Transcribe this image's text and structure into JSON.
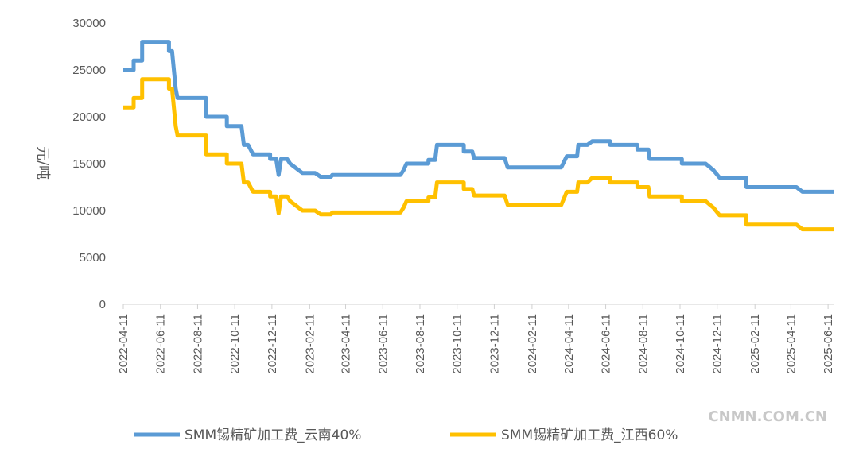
{
  "chart_data": {
    "type": "line",
    "title": "",
    "xlabel": "",
    "ylabel": "元/吨",
    "ylim": [
      0,
      30000
    ],
    "yticks": [
      0,
      5000,
      10000,
      15000,
      20000,
      25000,
      30000
    ],
    "xlim": [
      "2022-04-11",
      "2025-06-20"
    ],
    "xticks": [
      "2022-04-11",
      "2022-06-11",
      "2022-08-11",
      "2022-10-11",
      "2022-12-11",
      "2023-02-11",
      "2023-04-11",
      "2023-06-11",
      "2023-08-11",
      "2023-10-11",
      "2023-12-11",
      "2024-02-11",
      "2024-04-11",
      "2024-06-11",
      "2024-08-11",
      "2024-10-11",
      "2024-12-11",
      "2025-02-11",
      "2025-04-11",
      "2025-06-11"
    ],
    "grid": false,
    "legend_position": "bottom",
    "series": [
      {
        "name": "SMM锡精矿加工费_云南40%",
        "color": "#5B9BD5",
        "points": [
          [
            "2022-04-11",
            25000
          ],
          [
            "2022-04-28",
            25000
          ],
          [
            "2022-04-28",
            26000
          ],
          [
            "2022-05-12",
            26000
          ],
          [
            "2022-05-12",
            28000
          ],
          [
            "2022-06-25",
            28000
          ],
          [
            "2022-06-25",
            27000
          ],
          [
            "2022-06-30",
            27000
          ],
          [
            "2022-07-03",
            25000
          ],
          [
            "2022-07-06",
            23000
          ],
          [
            "2022-07-09",
            22000
          ],
          [
            "2022-08-25",
            22000
          ],
          [
            "2022-08-25",
            20000
          ],
          [
            "2022-09-28",
            20000
          ],
          [
            "2022-09-28",
            19000
          ],
          [
            "2022-10-22",
            19000
          ],
          [
            "2022-10-26",
            17000
          ],
          [
            "2022-11-02",
            17000
          ],
          [
            "2022-11-10",
            16000
          ],
          [
            "2022-12-08",
            16000
          ],
          [
            "2022-12-08",
            15500
          ],
          [
            "2022-12-18",
            15500
          ],
          [
            "2022-12-22",
            13800
          ],
          [
            "2022-12-26",
            15500
          ],
          [
            "2023-01-05",
            15500
          ],
          [
            "2023-01-10",
            15000
          ],
          [
            "2023-01-20",
            14500
          ],
          [
            "2023-01-30",
            14000
          ],
          [
            "2023-02-20",
            14000
          ],
          [
            "2023-03-01",
            13600
          ],
          [
            "2023-03-18",
            13600
          ],
          [
            "2023-03-20",
            13800
          ],
          [
            "2023-07-10",
            13800
          ],
          [
            "2023-07-15",
            14300
          ],
          [
            "2023-07-20",
            15000
          ],
          [
            "2023-08-25",
            15000
          ],
          [
            "2023-08-25",
            15400
          ],
          [
            "2023-09-05",
            15400
          ],
          [
            "2023-09-08",
            17000
          ],
          [
            "2023-10-22",
            17000
          ],
          [
            "2023-10-22",
            16300
          ],
          [
            "2023-11-05",
            16300
          ],
          [
            "2023-11-08",
            15600
          ],
          [
            "2023-12-10",
            15600
          ],
          [
            "2023-12-28",
            15600
          ],
          [
            "2024-01-02",
            14600
          ],
          [
            "2024-03-30",
            14600
          ],
          [
            "2024-04-08",
            15800
          ],
          [
            "2024-04-25",
            15800
          ],
          [
            "2024-04-27",
            17000
          ],
          [
            "2024-05-12",
            17000
          ],
          [
            "2024-05-20",
            17400
          ],
          [
            "2024-06-18",
            17400
          ],
          [
            "2024-06-18",
            17000
          ],
          [
            "2024-08-02",
            17000
          ],
          [
            "2024-08-02",
            16500
          ],
          [
            "2024-08-20",
            16500
          ],
          [
            "2024-08-22",
            15500
          ],
          [
            "2024-10-14",
            15500
          ],
          [
            "2024-10-14",
            15000
          ],
          [
            "2024-11-22",
            15000
          ],
          [
            "2024-12-05",
            14300
          ],
          [
            "2024-12-15",
            13500
          ],
          [
            "2025-01-28",
            13500
          ],
          [
            "2025-01-28",
            12500
          ],
          [
            "2025-04-20",
            12500
          ],
          [
            "2025-04-30",
            12000
          ],
          [
            "2025-06-20",
            12000
          ]
        ]
      },
      {
        "name": "SMM锡精矿加工费_江西60%",
        "color": "#FFC000",
        "points": [
          [
            "2022-04-11",
            21000
          ],
          [
            "2022-04-28",
            21000
          ],
          [
            "2022-04-28",
            22000
          ],
          [
            "2022-05-12",
            22000
          ],
          [
            "2022-05-12",
            24000
          ],
          [
            "2022-06-25",
            24000
          ],
          [
            "2022-06-25",
            23000
          ],
          [
            "2022-06-30",
            23000
          ],
          [
            "2022-07-03",
            21000
          ],
          [
            "2022-07-06",
            19000
          ],
          [
            "2022-07-09",
            18000
          ],
          [
            "2022-08-25",
            18000
          ],
          [
            "2022-08-25",
            16000
          ],
          [
            "2022-09-28",
            16000
          ],
          [
            "2022-09-28",
            15000
          ],
          [
            "2022-10-22",
            15000
          ],
          [
            "2022-10-26",
            13000
          ],
          [
            "2022-11-02",
            13000
          ],
          [
            "2022-11-10",
            12000
          ],
          [
            "2022-12-08",
            12000
          ],
          [
            "2022-12-08",
            11500
          ],
          [
            "2022-12-18",
            11500
          ],
          [
            "2022-12-22",
            9700
          ],
          [
            "2022-12-26",
            11500
          ],
          [
            "2023-01-05",
            11500
          ],
          [
            "2023-01-10",
            11000
          ],
          [
            "2023-01-20",
            10500
          ],
          [
            "2023-01-30",
            10000
          ],
          [
            "2023-02-20",
            10000
          ],
          [
            "2023-03-01",
            9600
          ],
          [
            "2023-03-18",
            9600
          ],
          [
            "2023-03-20",
            9800
          ],
          [
            "2023-07-10",
            9800
          ],
          [
            "2023-07-15",
            10300
          ],
          [
            "2023-07-20",
            11000
          ],
          [
            "2023-08-25",
            11000
          ],
          [
            "2023-08-25",
            11400
          ],
          [
            "2023-09-05",
            11400
          ],
          [
            "2023-09-08",
            13000
          ],
          [
            "2023-10-22",
            13000
          ],
          [
            "2023-10-22",
            12300
          ],
          [
            "2023-11-05",
            12300
          ],
          [
            "2023-11-08",
            11600
          ],
          [
            "2023-12-10",
            11600
          ],
          [
            "2023-12-28",
            11600
          ],
          [
            "2024-01-02",
            10600
          ],
          [
            "2024-03-30",
            10600
          ],
          [
            "2024-04-08",
            12000
          ],
          [
            "2024-04-25",
            12000
          ],
          [
            "2024-04-27",
            13000
          ],
          [
            "2024-05-12",
            13000
          ],
          [
            "2024-05-20",
            13500
          ],
          [
            "2024-06-18",
            13500
          ],
          [
            "2024-06-18",
            13000
          ],
          [
            "2024-08-02",
            13000
          ],
          [
            "2024-08-02",
            12500
          ],
          [
            "2024-08-20",
            12500
          ],
          [
            "2024-08-22",
            11500
          ],
          [
            "2024-10-14",
            11500
          ],
          [
            "2024-10-14",
            11000
          ],
          [
            "2024-11-22",
            11000
          ],
          [
            "2024-12-05",
            10300
          ],
          [
            "2024-12-15",
            9500
          ],
          [
            "2025-01-28",
            9500
          ],
          [
            "2025-01-28",
            8500
          ],
          [
            "2025-04-20",
            8500
          ],
          [
            "2025-04-30",
            8000
          ],
          [
            "2025-06-20",
            8000
          ]
        ]
      }
    ],
    "annotations": [
      "CNMN.COM.CN"
    ]
  }
}
